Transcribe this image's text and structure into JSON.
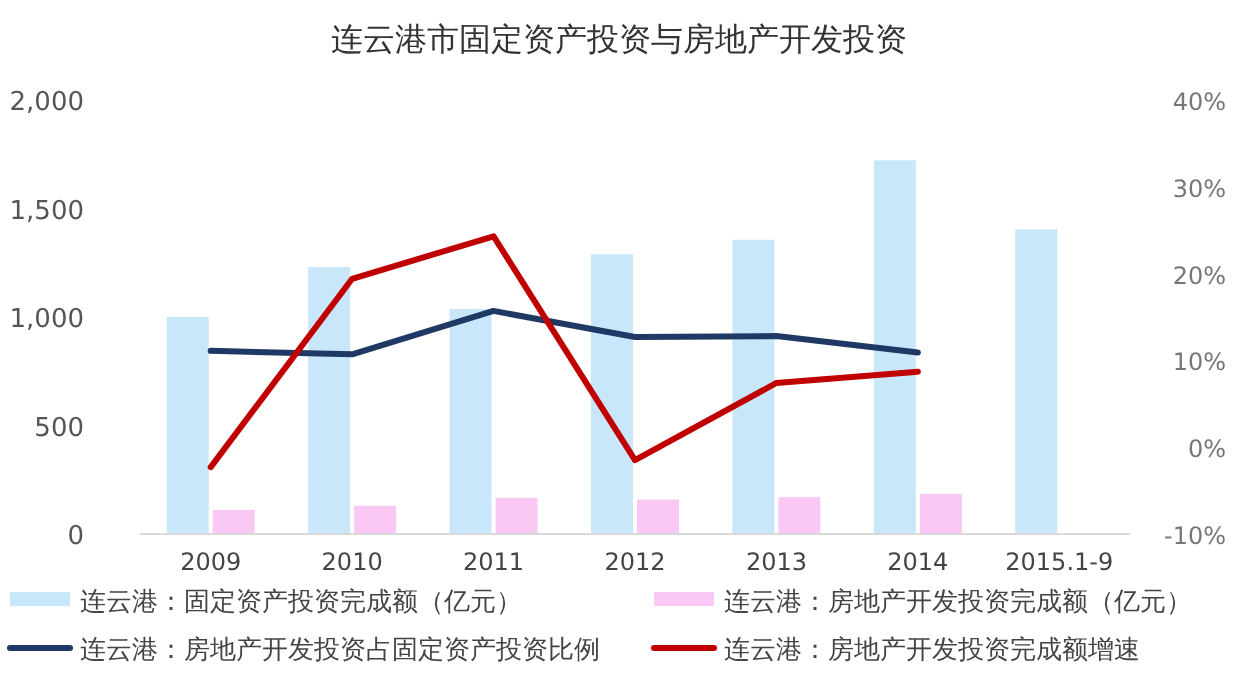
{
  "chart_data": {
    "type": "bar",
    "title": "连云港市固定资产投资与房地产开发投资",
    "categories": [
      "2009",
      "2010",
      "2011",
      "2012",
      "2013",
      "2014",
      "2015.1-9"
    ],
    "series": [
      {
        "name": "连云港：固定资产投资完成额（亿元）",
        "color": "#c9e7fa",
        "values": [
          1000,
          1230,
          1037,
          1289,
          1356,
          1722,
          1404
        ]
      },
      {
        "name": "连云港：房地产开发投资完成额（亿元）",
        "color": "#fac8f4",
        "values": [
          111,
          130,
          167,
          159,
          170,
          185,
          null
        ]
      },
      {
        "name": "连云港：房地产开发投资占固定资产投资比例",
        "type": "line",
        "axis": "y2",
        "color": "#1f3864",
        "values": [
          11.1,
          10.7,
          15.7,
          12.7,
          12.8,
          10.9,
          null
        ]
      },
      {
        "name": "连云港：房地产开发投资完成额增速",
        "type": "line",
        "axis": "y2",
        "color": "#c00000",
        "values": [
          -2.3,
          19.4,
          24.3,
          -1.5,
          7.4,
          8.7,
          null
        ]
      }
    ],
    "ylim": [
      0,
      2000
    ],
    "yticks": [
      {
        "value": 0,
        "label": "0"
      },
      {
        "value": 500,
        "label": "500"
      },
      {
        "value": 1000,
        "label": "1,000"
      },
      {
        "value": 1500,
        "label": "1,500"
      },
      {
        "value": 2000,
        "label": "2,000"
      }
    ],
    "y2lim": [
      -10,
      40
    ],
    "y2ticks": [
      {
        "value": -10,
        "label": "-10%"
      },
      {
        "value": 0,
        "label": "0%"
      },
      {
        "value": 10,
        "label": "10%"
      },
      {
        "value": 20,
        "label": "20%"
      },
      {
        "value": 30,
        "label": "30%"
      },
      {
        "value": 40,
        "label": "40%"
      }
    ],
    "legend": "bottom"
  }
}
